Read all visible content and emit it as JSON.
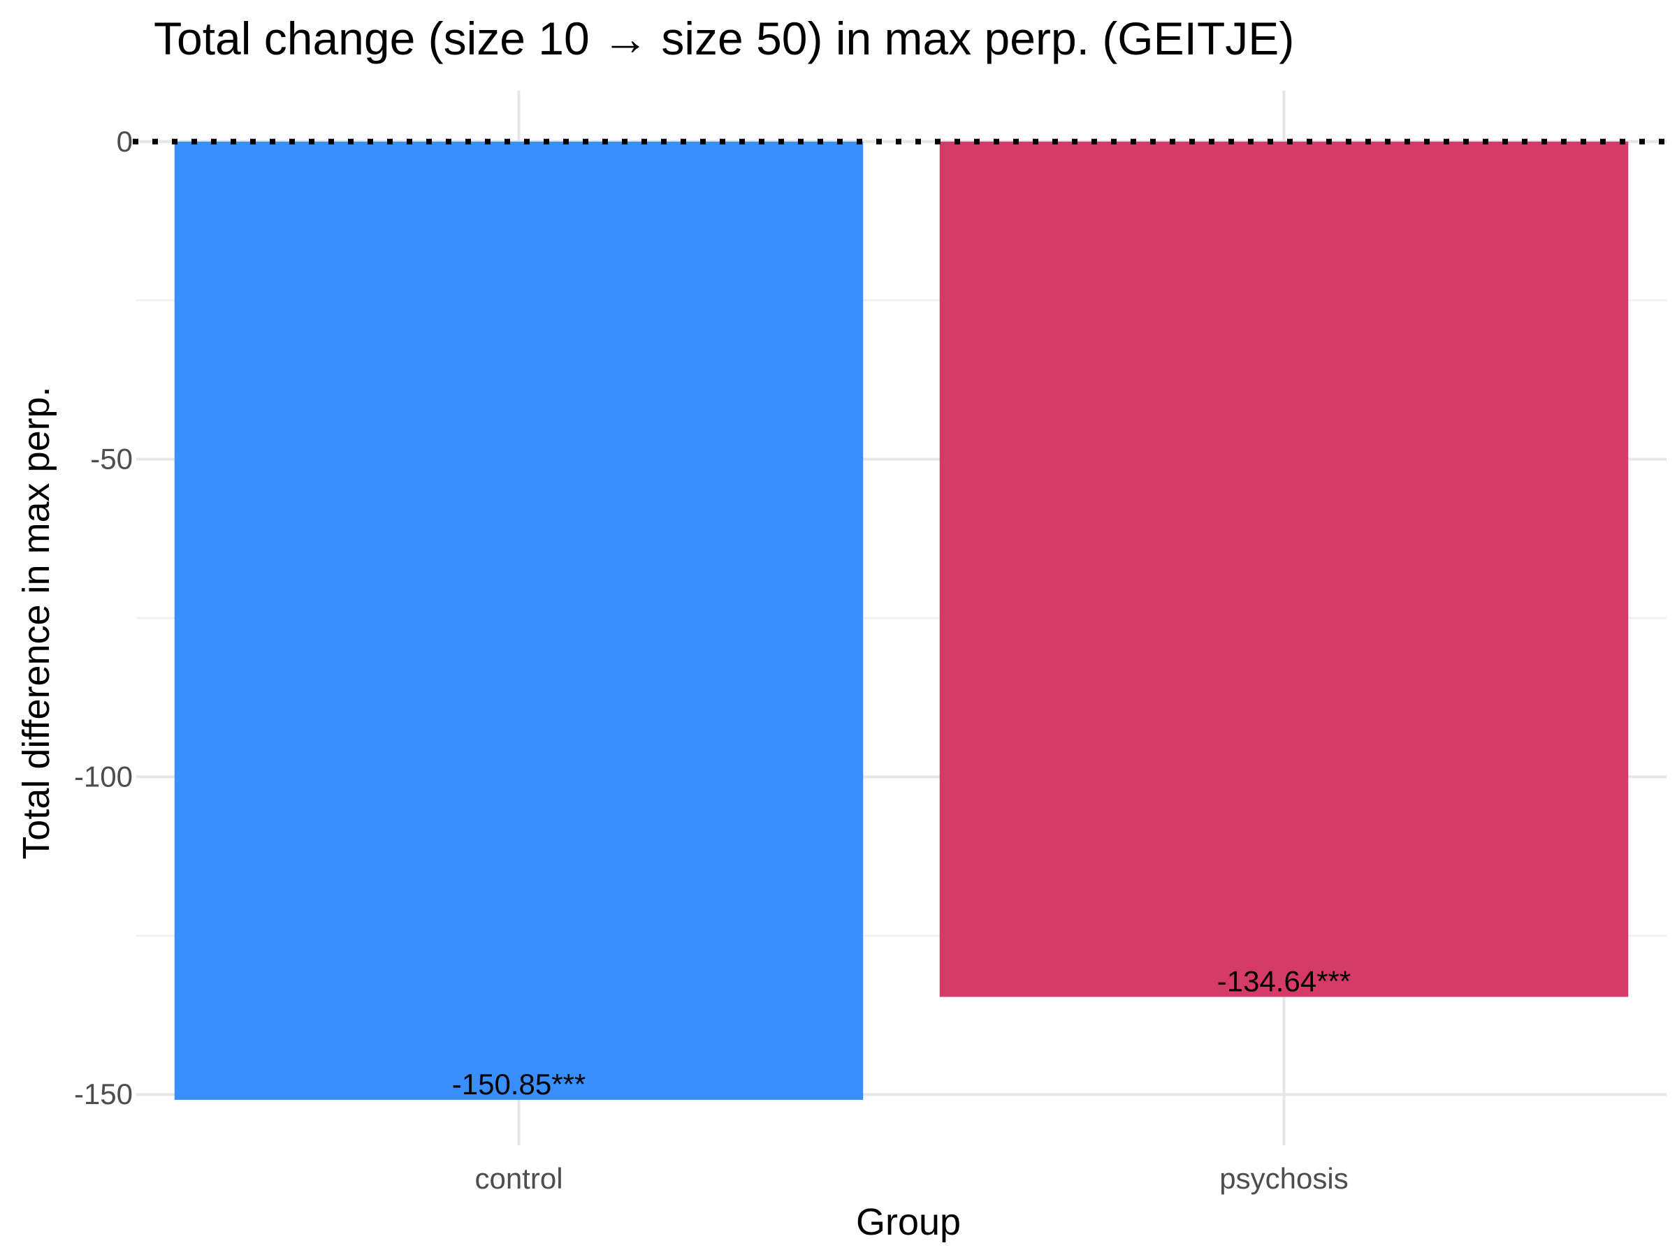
{
  "chart_data": {
    "type": "bar",
    "title": "Total change (size 10 → size 50) in max perp. (GEITJE)",
    "xlabel": "Group",
    "ylabel": "Total difference in max perp.",
    "categories": [
      "control",
      "psychosis"
    ],
    "values": [
      -150.85,
      -134.64
    ],
    "data_labels": [
      "-150.85***",
      "-134.64***"
    ],
    "colors": [
      "#3a8ffe",
      "#d63b67"
    ],
    "ylim": [
      -158,
      8
    ],
    "yticks": [
      0,
      -50,
      -100,
      -150
    ],
    "ytick_labels": [
      "0",
      "-50",
      "-100",
      "-150"
    ],
    "reference_line": {
      "y": 0,
      "style": "dotted",
      "color": "#000000"
    },
    "grid": true,
    "legend": "none"
  }
}
